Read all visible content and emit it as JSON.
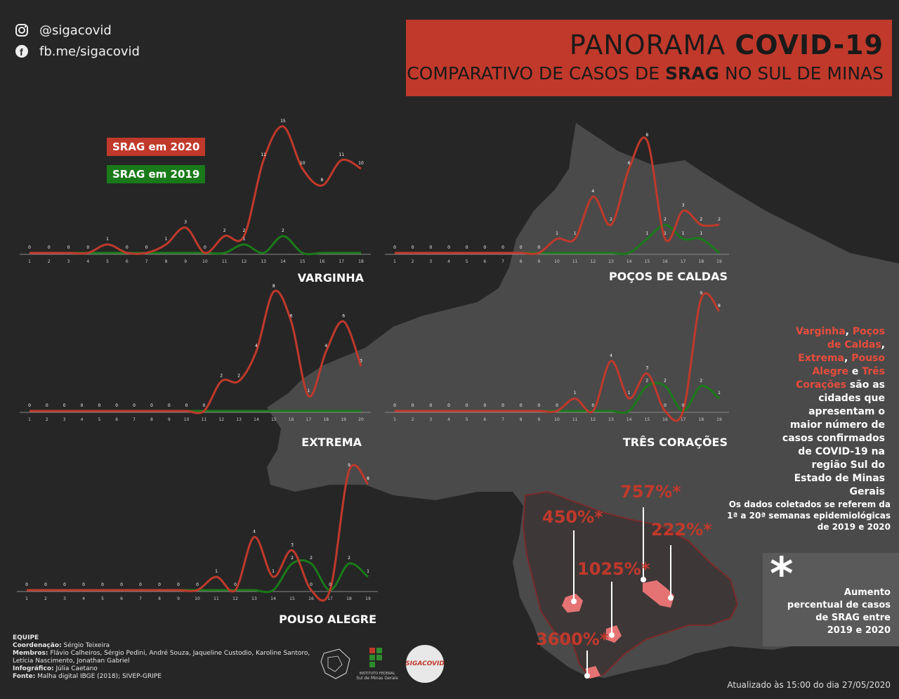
{
  "social": {
    "instagram": "@sigacovid",
    "facebook": "fb.me/sigacovid",
    "instagram_icon": "instagram-icon",
    "facebook_icon": "facebook-icon"
  },
  "title": {
    "line1_light": "PANORAMA ",
    "line1_bold": "COVID-19",
    "line2_pre": "COMPARATIVO DE CASOS DE ",
    "line2_bold": "SRAG",
    "line2_post": " NO SUL DE MINAS"
  },
  "legend": {
    "s2020": "SRAG em 2020",
    "s2019": "SRAG em 2019"
  },
  "colors": {
    "s2020": "#c0392b",
    "s2019": "#1a7a1a",
    "banner": "#c0392b",
    "bg": "#262626"
  },
  "chart_data": [
    {
      "type": "line",
      "title": "VARGINHA",
      "x": [
        1,
        2,
        3,
        4,
        5,
        6,
        7,
        8,
        9,
        10,
        11,
        12,
        13,
        14,
        15,
        16,
        17,
        18
      ],
      "series": [
        {
          "name": "SRAG em 2020",
          "values": [
            0,
            0,
            0,
            0,
            1,
            0,
            0,
            1,
            3,
            0,
            2,
            2,
            11,
            15,
            10,
            8,
            11,
            10
          ]
        },
        {
          "name": "SRAG em 2019",
          "values": [
            0,
            0,
            0,
            0,
            0,
            0,
            0,
            0,
            0,
            0,
            0,
            1,
            0,
            2,
            0,
            0,
            0,
            0
          ]
        }
      ]
    },
    {
      "type": "line",
      "title": "POÇOS DE CALDAS",
      "x": [
        1,
        2,
        3,
        4,
        5,
        6,
        7,
        8,
        9,
        10,
        11,
        12,
        13,
        14,
        15,
        16,
        17,
        18,
        19
      ],
      "series": [
        {
          "name": "SRAG em 2020",
          "values": [
            0,
            0,
            0,
            0,
            0,
            0,
            0,
            0,
            0,
            1,
            1,
            4,
            2,
            6,
            8,
            1,
            3,
            2,
            2
          ]
        },
        {
          "name": "SRAG em 2019",
          "values": [
            0,
            0,
            0,
            0,
            0,
            0,
            0,
            0,
            0,
            0,
            0,
            0,
            0,
            0,
            1,
            2,
            1,
            1,
            0
          ]
        }
      ]
    },
    {
      "type": "line",
      "title": "EXTREMA",
      "x": [
        1,
        2,
        3,
        4,
        5,
        6,
        7,
        8,
        9,
        10,
        11,
        12,
        13,
        14,
        15,
        16,
        17,
        18,
        19,
        20
      ],
      "series": [
        {
          "name": "SRAG em 2020",
          "values": [
            0,
            0,
            0,
            0,
            0,
            0,
            0,
            0,
            0,
            0,
            0,
            2,
            2,
            4,
            8,
            6,
            1,
            4,
            6,
            3
          ]
        },
        {
          "name": "SRAG em 2019",
          "values": [
            0,
            0,
            0,
            0,
            0,
            0,
            0,
            0,
            0,
            0,
            0,
            0,
            0,
            0,
            0,
            0,
            0,
            0,
            0,
            0
          ]
        }
      ]
    },
    {
      "type": "line",
      "title": "TRÊS CORAÇÕES",
      "x": [
        1,
        2,
        3,
        4,
        5,
        6,
        7,
        8,
        9,
        10,
        11,
        12,
        13,
        14,
        15,
        16,
        17,
        18,
        19
      ],
      "series": [
        {
          "name": "SRAG em 2020",
          "values": [
            0,
            0,
            0,
            0,
            0,
            0,
            0,
            0,
            0,
            0,
            1,
            0,
            4,
            1,
            3,
            0,
            0,
            9,
            8
          ]
        },
        {
          "name": "SRAG em 2019",
          "values": [
            0,
            0,
            0,
            0,
            0,
            0,
            0,
            0,
            0,
            0,
            0,
            0,
            0,
            0,
            2,
            2,
            0,
            2,
            1
          ]
        }
      ]
    },
    {
      "type": "line",
      "title": "POUSO ALEGRE",
      "x": [
        1,
        2,
        3,
        4,
        5,
        6,
        7,
        8,
        9,
        10,
        11,
        12,
        13,
        14,
        15,
        16,
        17,
        18,
        19
      ],
      "series": [
        {
          "name": "SRAG em 2020",
          "values": [
            0,
            0,
            0,
            0,
            0,
            0,
            0,
            0,
            0,
            0,
            1,
            0,
            4,
            1,
            3,
            0,
            0,
            9,
            8
          ]
        },
        {
          "name": "SRAG em 2019",
          "values": [
            0,
            0,
            0,
            0,
            0,
            0,
            0,
            0,
            0,
            0,
            0,
            0,
            0,
            0,
            2,
            2,
            0,
            2,
            1
          ]
        }
      ]
    }
  ],
  "side_text": {
    "c1": "Varginha",
    "sep1": ", ",
    "c2": "Poços de Caldas",
    "sep2": ", ",
    "c3": "Extrema",
    "sep3": ", ",
    "c4": "Pouso Alegre",
    "sep4": " e ",
    "c5": "Três Corações",
    "rest": " são as cidades que apresentam o maior número de casos confirmados de COVID-19 na região Sul do Estado de Minas Gerais"
  },
  "note": {
    "l1": "Os dados coletados se referem da",
    "l2": "1ª a 20ª semanas epidemiológicas",
    "l3": "de 2019 e 2020"
  },
  "asterisk_box": {
    "star": "*",
    "l1": "Aumento",
    "l2": "percentual de casos",
    "l3": "de SRAG entre",
    "l4": "2019 e 2020"
  },
  "percentages": {
    "p757": "757%*",
    "p450": "450%*",
    "p222": "222%*",
    "p1025": "1025%*",
    "p3600": "3600%*"
  },
  "team": {
    "heading": "EQUIPE",
    "coord_label": "Coordenação:",
    "coord": " Sérgio Teixeira",
    "members_label": "Membros:",
    "members": " Flávio Calheiros, Sérgio Pedini, André Souza, Jaqueline Custodio, Karoline Santoro,",
    "members2": "Letícia Nascimento, Jonathan Gabriel",
    "info_label": "Infográfico:",
    "info": " Júlia Caetano",
    "source_label": "Fonte:",
    "source": " Malha digital IBGE (2018); SIVEP-GRIPE"
  },
  "logos": {
    "if_text": "INSTITUTO FEDERAL",
    "if_sub": "Sul de Minas Gerais",
    "siga": "SIGACOVID"
  },
  "updated": "Atualizado às 15:00 do dia 27/05/2020"
}
